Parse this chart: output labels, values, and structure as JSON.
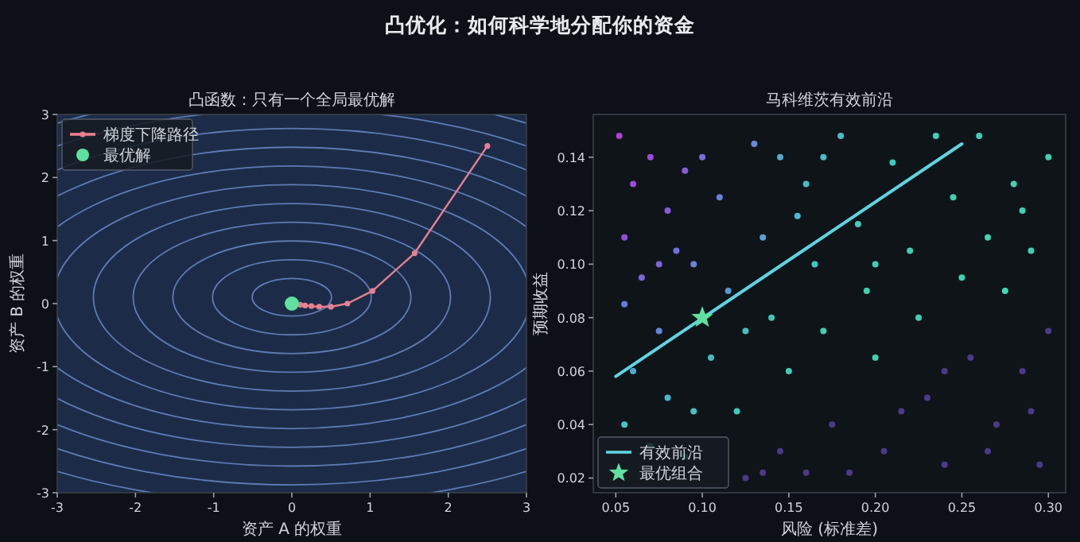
{
  "chart_data": [
    {
      "type": "other",
      "title": "凸优化：如何科学地分配你的资金"
    },
    {
      "type": "line",
      "title": "凸函数：只有一个全局最优解",
      "xlabel": "资产 A 的权重",
      "ylabel": "资产 B 的权重",
      "xlim": [
        -3,
        3
      ],
      "ylim": [
        -3,
        3
      ],
      "xticks": [
        -3,
        -2,
        -1,
        0,
        1,
        2,
        3
      ],
      "yticks": [
        -3,
        -2,
        -1,
        0,
        1,
        2,
        3
      ],
      "legend": "top left",
      "series": [
        {
          "name": "梯度下降路径",
          "type": "line",
          "marker": "circle",
          "color": "#e8808f",
          "x": [
            2.5,
            1.57,
            1.03,
            0.71,
            0.5,
            0.35,
            0.25,
            0.17,
            0.11
          ],
          "values": [
            2.5,
            0.8,
            0.2,
            0.0,
            -0.05,
            -0.05,
            -0.04,
            -0.03,
            -0.02
          ]
        },
        {
          "name": "最优解",
          "type": "scatter",
          "marker": "circle",
          "color": "#5fe0a0",
          "x": [
            0
          ],
          "values": [
            0
          ]
        }
      ]
    },
    {
      "type": "scatter",
      "title": "马科维茨有效前沿",
      "xlabel": "风险 (标准差)",
      "ylabel": "预期收益",
      "xlim": [
        0.037,
        0.31
      ],
      "ylim": [
        0.0145,
        0.156
      ],
      "xticks": [
        0.05,
        {
          "value": 0.1,
          "label": "0.10"
        },
        0.15,
        {
          "value": 0.2,
          "label": "0.20"
        },
        0.25,
        {
          "value": 0.3,
          "label": "0.30"
        }
      ],
      "yticks": [
        0.02,
        0.04,
        0.06,
        0.08,
        {
          "value": 0.1,
          "label": "0.10"
        },
        0.12,
        0.14
      ],
      "legend": "bottom left",
      "series": [
        {
          "type": "scatter",
          "marker": "circle",
          "x": [
            0.052,
            0.06,
            0.07,
            0.055,
            0.08,
            0.065,
            0.085,
            0.055,
            0.075,
            0.06,
            0.08,
            0.055,
            0.07,
            0.09,
            0.1,
            0.11,
            0.095,
            0.115,
            0.105,
            0.12,
            0.13,
            0.135,
            0.14,
            0.15,
            0.145,
            0.16,
            0.165,
            0.17,
            0.175,
            0.18,
            0.19,
            0.195,
            0.2,
            0.205,
            0.21,
            0.22,
            0.225,
            0.23,
            0.24,
            0.245,
            0.25,
            0.255,
            0.26,
            0.265,
            0.27,
            0.275,
            0.28,
            0.285,
            0.29,
            0.295,
            0.3,
            0.3,
            0.135,
            0.16,
            0.125,
            0.185,
            0.155,
            0.125,
            0.095,
            0.215,
            0.29,
            0.235,
            0.145,
            0.09,
            0.075,
            0.285,
            0.24,
            0.265,
            0.2,
            0.17
          ],
          "values": [
            0.148,
            0.13,
            0.14,
            0.11,
            0.12,
            0.095,
            0.105,
            0.085,
            0.075,
            0.06,
            0.05,
            0.04,
            0.032,
            0.028,
            0.14,
            0.125,
            0.1,
            0.09,
            0.065,
            0.045,
            0.145,
            0.11,
            0.08,
            0.06,
            0.03,
            0.13,
            0.1,
            0.075,
            0.04,
            0.148,
            0.115,
            0.09,
            0.065,
            0.03,
            0.138,
            0.105,
            0.08,
            0.05,
            0.025,
            0.125,
            0.095,
            0.065,
            0.148,
            0.11,
            0.04,
            0.09,
            0.13,
            0.06,
            0.105,
            0.025,
            0.14,
            0.075,
            0.022,
            0.022,
            0.02,
            0.022,
            0.118,
            0.075,
            0.045,
            0.045,
            0.045,
            0.148,
            0.14,
            0.135,
            0.1,
            0.12,
            0.06,
            0.03,
            0.1,
            0.14
          ],
          "colors": [
            "#b040d0",
            "#a048d8",
            "#a048d8",
            "#9050d8",
            "#8a5ad8",
            "#7a66d8",
            "#7070d8",
            "#6a7ad8",
            "#6088d8",
            "#50a8d0",
            "#48b8c8",
            "#40c8c0",
            "#40c8c0",
            "#40c8c0",
            "#7a70d8",
            "#6a80d8",
            "#6a84d8",
            "#5898d0",
            "#48b8c0",
            "#40c8b8",
            "#6a88d8",
            "#5aa0d0",
            "#44c4b8",
            "#40ccb0",
            "#4a3a88",
            "#4ab8c8",
            "#40c8b8",
            "#40d0b0",
            "#4a3a88",
            "#48bcc8",
            "#40ccb8",
            "#40d0b0",
            "#40d0b0",
            "#4a3a88",
            "#40c8c0",
            "#40d0b0",
            "#40d0b0",
            "#4a3a88",
            "#4a3a88",
            "#40d0b0",
            "#40d0b0",
            "#4a3a88",
            "#40d0b0",
            "#40d8b0",
            "#4a3a88",
            "#40d8b0",
            "#40d0b0",
            "#4a3a88",
            "#40d0b0",
            "#4a3a88",
            "#40d0b0",
            "#4a3a88",
            "#4a3a88",
            "#4a3a88",
            "#4a3a88",
            "#4a3a88",
            "#4abcc8",
            "#44c0c0",
            "#44c0c0",
            "#4a3a88",
            "#4a3a88",
            "#40d0b0",
            "#58a8d0",
            "#8a5ad8",
            "#7a66d8",
            "#40d0b0",
            "#4a3a88",
            "#4a3a88",
            "#40d0b0",
            "#48bcc8"
          ]
        },
        {
          "name": "有效前沿",
          "type": "line",
          "color": "#5fd3e0",
          "x": [
            0.05,
            0.25
          ],
          "values": [
            0.058,
            0.145
          ]
        },
        {
          "name": "最优组合",
          "type": "scatter",
          "marker": "star",
          "color": "#5fe0a0",
          "x": [
            0.1
          ],
          "values": [
            0.08
          ]
        }
      ]
    }
  ]
}
